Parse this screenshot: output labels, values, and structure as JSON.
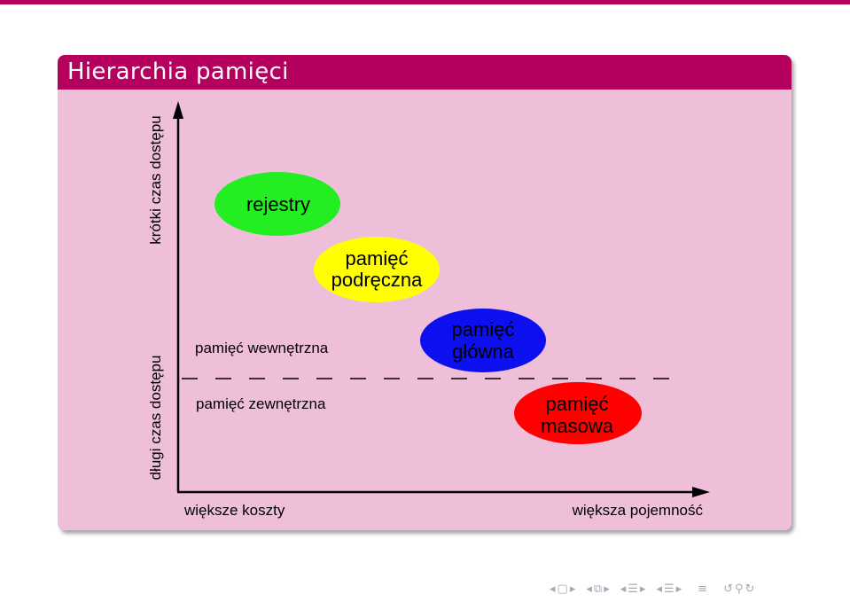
{
  "colors": {
    "accent": "#b5005e",
    "block_body": "#efbfda",
    "rejestry": "#22ee22",
    "podreczna": "#ffff00",
    "glowna": "#0d10ee",
    "masowa": "#ff0000"
  },
  "slide": {
    "title": "Hierarchia pamięci"
  },
  "diagram": {
    "y_top_label": "krótki czas dostępu",
    "y_bottom_label": "długi czas dostępu",
    "x_left_label": "większe koszty",
    "x_right_label": "większa pojemność",
    "above_line_label": "pamięć wewnętrzna",
    "below_line_label": "pamięć zewnętrzna",
    "nodes": {
      "rejestry": "rejestry",
      "podreczna_1": "pamięć",
      "podreczna_2": "podręczna",
      "glowna_1": "pamięć",
      "glowna_2": "główna",
      "masowa_1": "pamięć",
      "masowa_2": "masowa"
    }
  },
  "nav": {
    "icons": [
      "arrow-left-icon",
      "frame-icon",
      "arrow-right-icon",
      "arrow-left-icon",
      "slides-icon",
      "arrow-right-icon",
      "arrow-left-icon",
      "section-icon",
      "arrow-right-icon",
      "arrow-left-icon",
      "subsection-icon",
      "arrow-right-icon",
      "align-icon",
      "undo-icon",
      "search-icon",
      "redo-icon"
    ]
  }
}
